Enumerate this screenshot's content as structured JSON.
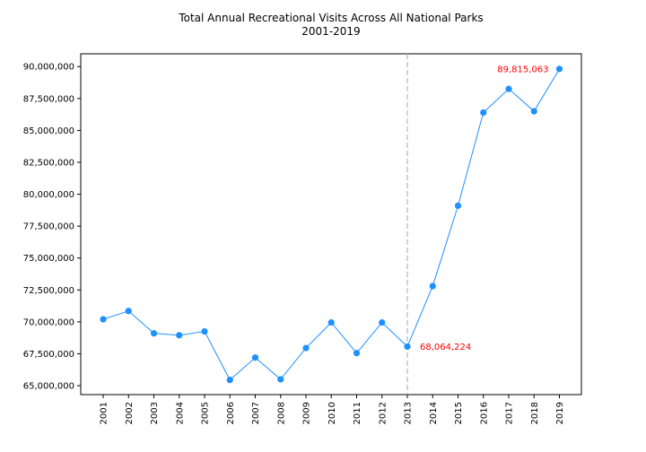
{
  "chart_data": {
    "type": "line",
    "title": "Total Annual Recreational Visits Across All National Parks",
    "subtitle": "2001-2019",
    "xlabel": "",
    "ylabel": "",
    "categories": [
      "2001",
      "2002",
      "2003",
      "2004",
      "2005",
      "2006",
      "2007",
      "2008",
      "2009",
      "2010",
      "2011",
      "2012",
      "2013",
      "2014",
      "2015",
      "2016",
      "2017",
      "2018",
      "2019"
    ],
    "series": [
      {
        "values": [
          70200000,
          70850000,
          69100000,
          68950000,
          69250000,
          65450000,
          67200000,
          65500000,
          67950000,
          69950000,
          67550000,
          69950000,
          68064224,
          72800000,
          79100000,
          86400000,
          88250000,
          86500000,
          89815063
        ]
      }
    ],
    "ylim": [
      64300000,
      91000000
    ],
    "yticks": [
      65000000,
      67500000,
      70000000,
      72500000,
      75000000,
      77500000,
      80000000,
      82500000,
      85000000,
      87500000,
      90000000
    ],
    "ytick_labels": [
      "65,000,000",
      "67,500,000",
      "70,000,000",
      "72,500,000",
      "75,000,000",
      "77,500,000",
      "80,000,000",
      "82,500,000",
      "85,000,000",
      "87,500,000",
      "90,000,000"
    ],
    "reference_line": {
      "category": "2013",
      "style": "dashed"
    },
    "annotations": [
      {
        "category": "2013",
        "value": 68064224,
        "text": "68,064,224",
        "color": "#ff0000"
      },
      {
        "category": "2019",
        "value": 89815063,
        "text": "89,815,063",
        "color": "#ff0000"
      }
    ],
    "grid": false,
    "legend": "none",
    "colors": {
      "line": "#1e90ff",
      "marker": "#1e90ff",
      "reference_line": "#b0b0e8",
      "annotation": "#ff0000"
    }
  }
}
